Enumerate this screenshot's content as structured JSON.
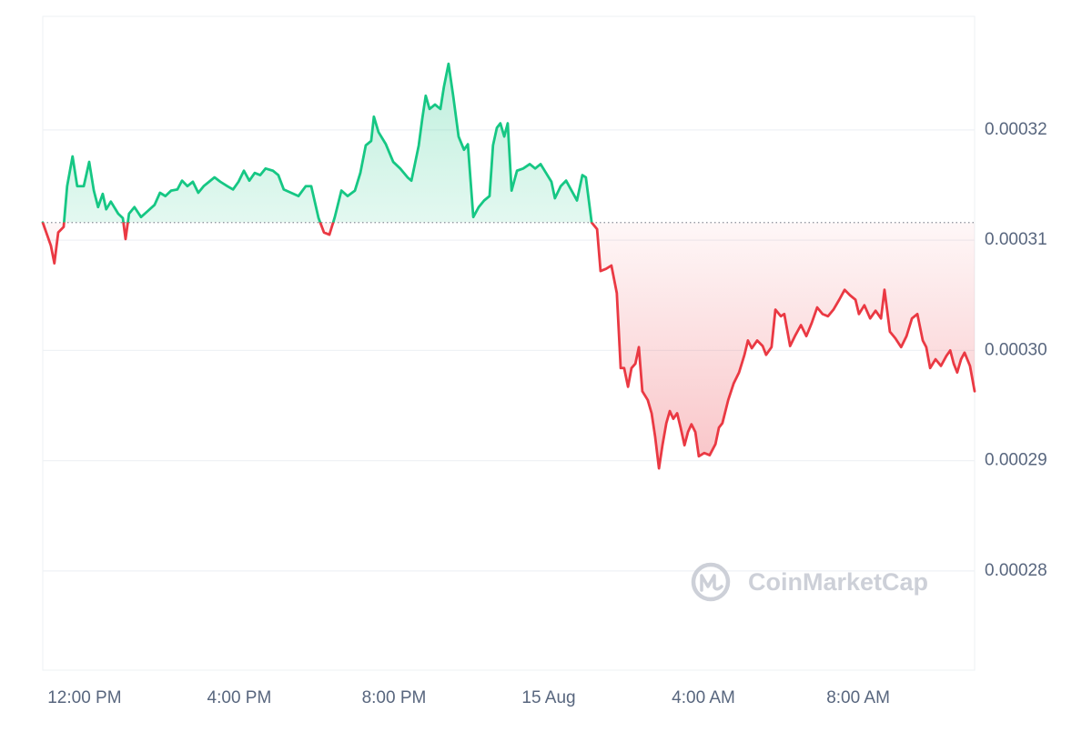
{
  "chart_data": {
    "type": "line",
    "watermark": "CoinMarketCap",
    "up_color": "#16c784",
    "down_color": "#ea3943",
    "baseline": 0.0003116,
    "grid": true,
    "xlim": [
      10.92,
      35.01
    ],
    "xticks": [
      {
        "value": 12,
        "label": "12:00 PM"
      },
      {
        "value": 16,
        "label": "4:00 PM"
      },
      {
        "value": 20,
        "label": "8:00 PM"
      },
      {
        "value": 24,
        "label": "15 Aug"
      },
      {
        "value": 28,
        "label": "4:00 AM"
      },
      {
        "value": 32,
        "label": "8:00 AM"
      }
    ],
    "ylim": [
      0.000271,
      0.0003303
    ],
    "yticks": [
      0.00028,
      0.00029,
      {
        "value": 0.0003,
        "label": "0.00030"
      },
      0.00031,
      0.00032
    ],
    "x": [
      10.92,
      11.13,
      11.22,
      11.32,
      11.46,
      11.55,
      11.69,
      11.81,
      11.98,
      12.12,
      12.24,
      12.35,
      12.47,
      12.56,
      12.68,
      12.87,
      12.99,
      13.06,
      13.15,
      13.29,
      13.46,
      13.62,
      13.81,
      13.95,
      14.09,
      14.24,
      14.4,
      14.52,
      14.66,
      14.8,
      14.94,
      15.08,
      15.22,
      15.36,
      15.51,
      15.69,
      15.84,
      15.98,
      16.12,
      16.26,
      16.4,
      16.54,
      16.68,
      16.87,
      17.01,
      17.15,
      17.34,
      17.53,
      17.72,
      17.86,
      18.05,
      18.19,
      18.33,
      18.47,
      18.64,
      18.8,
      18.99,
      19.13,
      19.27,
      19.41,
      19.48,
      19.6,
      19.79,
      19.98,
      20.16,
      20.35,
      20.45,
      20.54,
      20.64,
      20.73,
      20.82,
      20.92,
      21.06,
      21.2,
      21.29,
      21.41,
      21.53,
      21.67,
      21.81,
      21.91,
      22.05,
      22.19,
      22.33,
      22.47,
      22.56,
      22.66,
      22.75,
      22.85,
      22.94,
      23.04,
      23.18,
      23.34,
      23.51,
      23.65,
      23.79,
      23.93,
      24.07,
      24.16,
      24.31,
      24.45,
      24.59,
      24.73,
      24.87,
      24.96,
      25.11,
      25.25,
      25.34,
      25.48,
      25.62,
      25.76,
      25.86,
      25.95,
      26.05,
      26.14,
      26.24,
      26.33,
      26.42,
      26.56,
      26.66,
      26.75,
      26.85,
      26.94,
      27.04,
      27.13,
      27.22,
      27.32,
      27.41,
      27.51,
      27.6,
      27.69,
      27.79,
      27.88,
      28.02,
      28.16,
      28.31,
      28.4,
      28.49,
      28.64,
      28.78,
      28.92,
      29.06,
      29.15,
      29.25,
      29.39,
      29.53,
      29.62,
      29.76,
      29.86,
      30.0,
      30.09,
      30.24,
      30.38,
      30.52,
      30.66,
      30.8,
      30.94,
      31.08,
      31.22,
      31.36,
      31.51,
      31.65,
      31.79,
      31.93,
      32.02,
      32.16,
      32.31,
      32.45,
      32.59,
      32.68,
      32.82,
      32.96,
      33.11,
      33.25,
      33.39,
      33.53,
      33.67,
      33.76,
      33.86,
      34.0,
      34.14,
      34.28,
      34.38,
      34.47,
      34.56,
      34.66,
      34.75,
      34.89,
      35.01
    ],
    "values": [
      0.0003116,
      0.0003095,
      0.0003079,
      0.0003107,
      0.0003112,
      0.0003149,
      0.0003176,
      0.0003149,
      0.0003149,
      0.0003171,
      0.0003145,
      0.000313,
      0.0003142,
      0.0003128,
      0.0003135,
      0.0003124,
      0.000312,
      0.0003101,
      0.0003124,
      0.000313,
      0.0003121,
      0.0003126,
      0.0003132,
      0.0003143,
      0.000314,
      0.0003145,
      0.0003146,
      0.0003154,
      0.0003149,
      0.0003153,
      0.0003143,
      0.0003149,
      0.0003153,
      0.0003157,
      0.0003153,
      0.0003149,
      0.0003146,
      0.0003153,
      0.0003163,
      0.0003154,
      0.0003161,
      0.0003159,
      0.0003165,
      0.0003163,
      0.0003159,
      0.0003146,
      0.0003143,
      0.000314,
      0.0003149,
      0.0003149,
      0.000312,
      0.0003107,
      0.0003105,
      0.0003121,
      0.0003145,
      0.000314,
      0.0003145,
      0.0003161,
      0.0003186,
      0.000319,
      0.0003212,
      0.0003198,
      0.0003187,
      0.0003171,
      0.0003165,
      0.0003157,
      0.0003154,
      0.0003169,
      0.0003186,
      0.000321,
      0.0003231,
      0.0003219,
      0.0003223,
      0.0003219,
      0.0003239,
      0.000326,
      0.0003231,
      0.0003194,
      0.0003182,
      0.0003187,
      0.0003121,
      0.000313,
      0.0003136,
      0.000314,
      0.0003186,
      0.0003202,
      0.0003206,
      0.0003194,
      0.0003206,
      0.0003145,
      0.0003163,
      0.0003165,
      0.0003169,
      0.0003165,
      0.0003169,
      0.0003161,
      0.0003153,
      0.0003138,
      0.0003149,
      0.0003154,
      0.0003145,
      0.0003136,
      0.0003159,
      0.0003157,
      0.0003116,
      0.000311,
      0.0003072,
      0.0003074,
      0.0003077,
      0.0003052,
      0.0002984,
      0.0002984,
      0.0002967,
      0.0002984,
      0.0002988,
      0.0003003,
      0.0002963,
      0.0002955,
      0.0002943,
      0.0002922,
      0.0002893,
      0.0002914,
      0.0002934,
      0.0002945,
      0.0002938,
      0.0002943,
      0.000293,
      0.0002914,
      0.0002926,
      0.0002933,
      0.0002926,
      0.0002904,
      0.0002907,
      0.0002905,
      0.0002915,
      0.000293,
      0.0002934,
      0.0002955,
      0.000297,
      0.000298,
      0.0002996,
      0.0003009,
      0.0003002,
      0.0003009,
      0.0003004,
      0.0002996,
      0.0003003,
      0.0003037,
      0.0003031,
      0.0003033,
      0.0003004,
      0.0003014,
      0.0003023,
      0.0003013,
      0.0003025,
      0.0003039,
      0.0003033,
      0.0003031,
      0.0003037,
      0.0003046,
      0.0003055,
      0.000305,
      0.0003046,
      0.0003033,
      0.0003041,
      0.0003029,
      0.0003036,
      0.0003029,
      0.0003055,
      0.0003017,
      0.0003011,
      0.0003003,
      0.0003013,
      0.0003029,
      0.0003033,
      0.0003009,
      0.0003003,
      0.0002984,
      0.0002992,
      0.0002986,
      0.0002995,
      0.0003,
      0.0002988,
      0.000298,
      0.0002992,
      0.0002998,
      0.0002986,
      0.0002963
    ]
  }
}
